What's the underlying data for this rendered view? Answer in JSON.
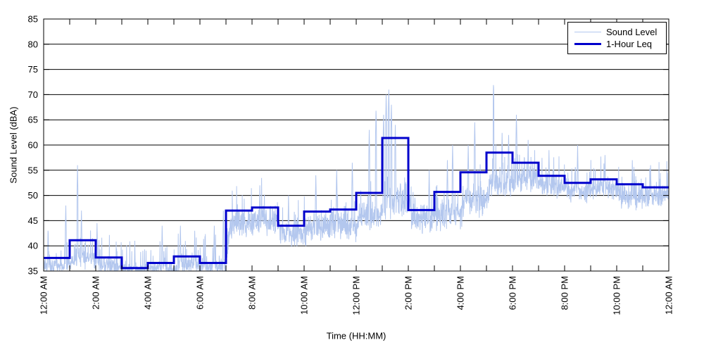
{
  "chart_data": {
    "type": "line",
    "title": "",
    "xlabel": "Time (HH:MM)",
    "ylabel": "Sound Level (dBA)",
    "ylim": [
      35,
      85
    ],
    "xlim_hours": [
      0,
      24
    ],
    "y_ticks": [
      35,
      40,
      45,
      50,
      55,
      60,
      65,
      70,
      75,
      80,
      85
    ],
    "x_tick_interval_hours": 1,
    "x_label_interval_hours": 2,
    "x_tick_labels": [
      "12:00 AM",
      "2:00 AM",
      "4:00 AM",
      "6:00 AM",
      "8:00 AM",
      "10:00 AM",
      "12:00 PM",
      "2:00 PM",
      "4:00 PM",
      "6:00 PM",
      "8:00 PM",
      "10:00 PM",
      "12:00 AM"
    ],
    "grid": {
      "horizontal": true,
      "vertical": false,
      "color": "#000000"
    },
    "axis_color": "#000000",
    "background": "#ffffff",
    "legend": {
      "position": "top-right",
      "entries": [
        "Sound Level",
        "1-Hour Leq"
      ]
    },
    "series": [
      {
        "name": "Sound Level",
        "color": "#b3c7ee",
        "line_width": 1,
        "kind": "noisy-minute-trace",
        "sample_step_minutes": 0.5,
        "hourly_baseline": [
          36.2,
          37.3,
          36.2,
          35.3,
          35.6,
          36.3,
          36.0,
          44.3,
          45.3,
          42.3,
          43.8,
          44.3,
          46.3,
          49.0,
          45.3,
          46.3,
          49.3,
          52.3,
          53.3,
          52.0,
          50.8,
          51.3,
          49.8,
          49.8
        ],
        "hourly_band": [
          1.6,
          2.0,
          1.6,
          1.2,
          1.4,
          1.8,
          1.6,
          3.0,
          2.8,
          2.6,
          2.8,
          2.8,
          2.8,
          3.2,
          2.8,
          2.8,
          3.2,
          3.0,
          2.6,
          2.2,
          2.2,
          2.2,
          2.4,
          2.0
        ],
        "spikes": [
          {
            "hour": 0.17,
            "dba": 44.0
          },
          {
            "hour": 0.85,
            "dba": 48.0
          },
          {
            "hour": 1.3,
            "dba": 56.0
          },
          {
            "hour": 1.45,
            "dba": 47.0
          },
          {
            "hour": 2.05,
            "dba": 44.5
          },
          {
            "hour": 3.5,
            "dba": 41.0
          },
          {
            "hour": 4.55,
            "dba": 44.0
          },
          {
            "hour": 5.25,
            "dba": 44.0
          },
          {
            "hour": 5.8,
            "dba": 43.0
          },
          {
            "hour": 6.55,
            "dba": 44.0
          },
          {
            "hour": 6.9,
            "dba": 47.0
          },
          {
            "hour": 8.3,
            "dba": 52.0
          },
          {
            "hour": 9.4,
            "dba": 50.0
          },
          {
            "hour": 10.45,
            "dba": 54.0
          },
          {
            "hour": 11.25,
            "dba": 55.0
          },
          {
            "hour": 11.85,
            "dba": 56.5
          },
          {
            "hour": 12.5,
            "dba": 63.0
          },
          {
            "hour": 12.76,
            "dba": 67.3
          },
          {
            "hour": 13.05,
            "dba": 66.0
          },
          {
            "hour": 13.15,
            "dba": 70.0
          },
          {
            "hour": 13.25,
            "dba": 71.0
          },
          {
            "hour": 13.35,
            "dba": 68.0
          },
          {
            "hour": 13.5,
            "dba": 64.0
          },
          {
            "hour": 14.8,
            "dba": 55.0
          },
          {
            "hour": 15.5,
            "dba": 57.0
          },
          {
            "hour": 15.7,
            "dba": 60.0
          },
          {
            "hour": 16.3,
            "dba": 60.0
          },
          {
            "hour": 16.55,
            "dba": 64.5
          },
          {
            "hour": 17.27,
            "dba": 72.9
          },
          {
            "hour": 17.6,
            "dba": 62.4
          },
          {
            "hour": 17.85,
            "dba": 62.0
          },
          {
            "hour": 18.15,
            "dba": 66.0
          },
          {
            "hour": 18.6,
            "dba": 61.0
          },
          {
            "hour": 19.4,
            "dba": 59.0
          },
          {
            "hour": 20.5,
            "dba": 60.0
          },
          {
            "hour": 21.55,
            "dba": 58.0
          },
          {
            "hour": 22.6,
            "dba": 57.0
          },
          {
            "hour": 23.3,
            "dba": 56.0
          },
          {
            "hour": 23.95,
            "dba": 54.5
          }
        ]
      },
      {
        "name": "1-Hour Leq",
        "color": "#0000cc",
        "line_width": 3,
        "kind": "hourly-step",
        "hours": [
          0,
          1,
          2,
          3,
          4,
          5,
          6,
          7,
          8,
          9,
          10,
          11,
          12,
          13,
          14,
          15,
          16,
          17,
          18,
          19,
          20,
          21,
          22,
          23
        ],
        "values": [
          37.6,
          41.1,
          37.7,
          35.6,
          36.6,
          37.9,
          36.6,
          47.0,
          47.6,
          44.0,
          46.8,
          47.2,
          50.5,
          61.4,
          47.1,
          50.7,
          54.6,
          58.5,
          56.5,
          53.9,
          52.5,
          53.2,
          52.2,
          51.6
        ]
      }
    ]
  }
}
